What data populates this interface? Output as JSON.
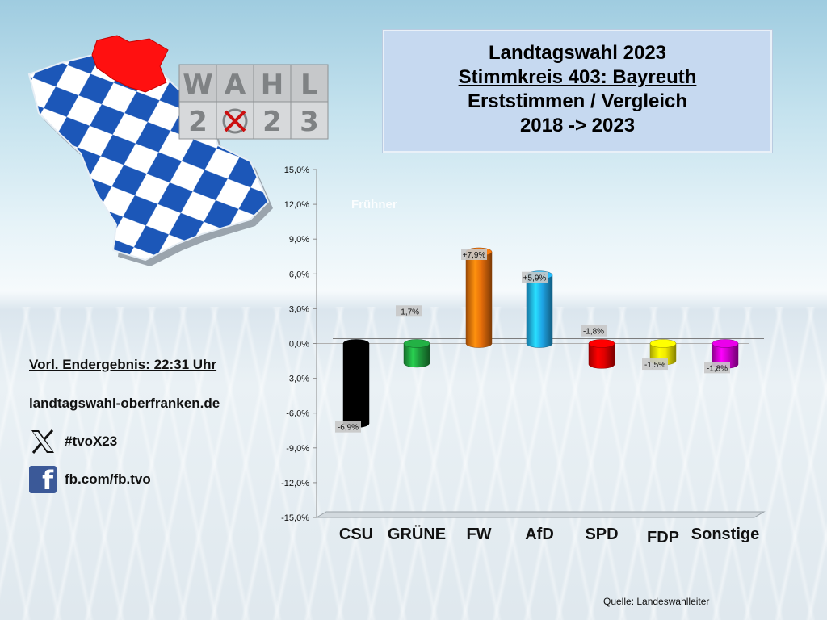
{
  "title": {
    "line1": "Landtagswahl 2023",
    "line2": "Stimmkreis 403: Bayreuth",
    "line3": "Erststimmen / Vergleich",
    "line4": "2018 -> 2023"
  },
  "logo": {
    "letters_top": [
      "W",
      "A",
      "H",
      "L"
    ],
    "letters_bottom": [
      "2",
      "X",
      "2",
      "3"
    ]
  },
  "info": {
    "result": "Vorl. Endergebnis: 22:31 Uhr",
    "website": "landtagswahl-oberfranken.de",
    "x_handle": "#tvoX23",
    "fb_handle": "fb.com/fb.tvo"
  },
  "watermark": "Frühner",
  "source": "Quelle:  Landeswahlleiter",
  "colors": {
    "title_box": "#c6d9f0",
    "CSU": "#000000",
    "GRÜNE": "#1e9a3c",
    "FW": "#e36c0a",
    "AfD": "#1ea5e6",
    "SPD": "#e00000",
    "FDP": "#f2ea00",
    "Sonstige": "#cc00cc"
  },
  "chart_data": {
    "type": "bar",
    "categories": [
      "CSU",
      "GRÜNE",
      "FW",
      "AfD",
      "SPD",
      "FDP",
      "Sonstige"
    ],
    "values": [
      -6.9,
      -1.7,
      7.9,
      5.9,
      -1.8,
      -1.5,
      -1.8
    ],
    "labels": [
      "-6,9%",
      "-1,7%",
      "+7,9%",
      "+5,9%",
      "-1,8%",
      "-1,5%",
      "-1,8%"
    ],
    "ylim": [
      -15,
      15
    ],
    "yticks": [
      "15,0%",
      "12,0%",
      "9,0%",
      "6,0%",
      "3,0%",
      "0,0%",
      "-3,0%",
      "-6,0%",
      "-9,0%",
      "-12,0%",
      "-15,0%"
    ],
    "ytick_values": [
      15,
      12,
      9,
      6,
      3,
      0,
      -3,
      -6,
      -9,
      -12,
      -15
    ],
    "grid": false,
    "legend": "none"
  }
}
